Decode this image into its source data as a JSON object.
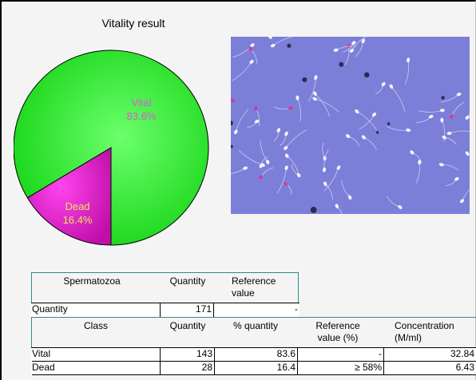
{
  "title": "Vitality result",
  "chart_data": {
    "type": "pie",
    "slices": [
      {
        "label": "Vital",
        "value": 83.6,
        "text": "83.6%",
        "color": "#22ee22"
      },
      {
        "label": "Dead",
        "value": 16.4,
        "text": "16.4%",
        "color": "#cc11aa"
      }
    ]
  },
  "table1": {
    "headers": [
      "Spermatozoa",
      "Quantity",
      "Reference value"
    ],
    "row": {
      "label": "Quantity",
      "quantity": "171",
      "reference": "-"
    }
  },
  "table2": {
    "headers": [
      "Class",
      "Quantity",
      "% quantity",
      "Reference value (%)",
      "Concentration (M/ml)"
    ],
    "rows": [
      {
        "class": "Vital",
        "quantity": "143",
        "pct": "83.6",
        "reference": "-",
        "concentration": "32.84"
      },
      {
        "class": "Dead",
        "quantity": "28",
        "pct": "16.4",
        "reference": "≥ 58%",
        "concentration": "6.43"
      }
    ]
  },
  "colors": {
    "table_border": "#2f8c8c",
    "micro_bg": "#7c7fd8"
  }
}
